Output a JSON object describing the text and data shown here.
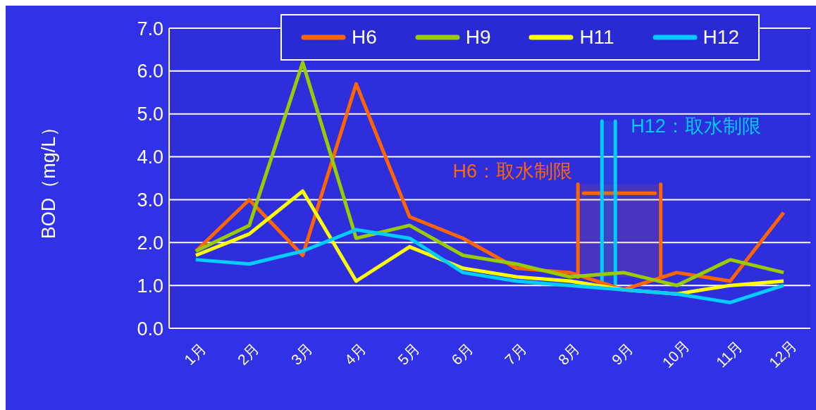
{
  "chart_data": {
    "type": "line",
    "ylabel": "BOD（mg/L）",
    "x": [
      1,
      2,
      3,
      4,
      5,
      6,
      7,
      8,
      9,
      10,
      11,
      12
    ],
    "xlim": [
      0.5,
      12.5
    ],
    "xticks": [
      {
        "value": 1,
        "label": "1月"
      },
      {
        "value": 2,
        "label": "2月"
      },
      {
        "value": 3,
        "label": "3月"
      },
      {
        "value": 4,
        "label": "4月"
      },
      {
        "value": 5,
        "label": "5月"
      },
      {
        "value": 6,
        "label": "6月"
      },
      {
        "value": 7,
        "label": "7月"
      },
      {
        "value": 8,
        "label": "8月"
      },
      {
        "value": 9,
        "label": "9月"
      },
      {
        "value": 10,
        "label": "10月"
      },
      {
        "value": 11,
        "label": "11月"
      },
      {
        "value": 12,
        "label": "12月"
      }
    ],
    "series": [
      {
        "name": "H6",
        "color": "#ff6600",
        "values": [
          1.8,
          3.0,
          1.7,
          5.7,
          2.6,
          2.1,
          1.4,
          1.3,
          0.9,
          1.3,
          1.1,
          2.7
        ]
      },
      {
        "name": "H9",
        "color": "#99cc00",
        "values": [
          1.8,
          2.4,
          6.2,
          2.1,
          2.4,
          1.7,
          1.5,
          1.2,
          1.3,
          1.0,
          1.6,
          1.3
        ]
      },
      {
        "name": "H11",
        "color": "#ffff00",
        "values": [
          1.7,
          2.2,
          3.2,
          1.1,
          1.9,
          1.4,
          1.2,
          1.1,
          0.9,
          0.8,
          1.0,
          1.1
        ]
      },
      {
        "name": "H12",
        "color": "#00ccff",
        "values": [
          1.6,
          1.5,
          1.8,
          2.3,
          2.1,
          1.3,
          1.1,
          1.0,
          0.9,
          0.8,
          0.6,
          1.0
        ]
      }
    ],
    "ylim": [
      0,
      7
    ],
    "yticks": [
      {
        "value": 0,
        "label": "0.0"
      },
      {
        "value": 1,
        "label": "1.0"
      },
      {
        "value": 2,
        "label": "2.0"
      },
      {
        "value": 3,
        "label": "3.0"
      },
      {
        "value": 4,
        "label": "4.0"
      },
      {
        "value": 5,
        "label": "5.0"
      },
      {
        "value": 6,
        "label": "6.0"
      },
      {
        "value": 7,
        "label": "7.0"
      }
    ],
    "grid": "y",
    "legend": "top",
    "marker": "none",
    "line_style": "solid",
    "bands": [
      {
        "axis": "x",
        "from": 8.15,
        "to": 9.7,
        "label": "H6：取水制限",
        "color": "#ff6600"
      },
      {
        "axis": "x",
        "from": 8.6,
        "to": 8.85,
        "label": "H12：取水制限",
        "color": "#00ccff"
      }
    ]
  }
}
